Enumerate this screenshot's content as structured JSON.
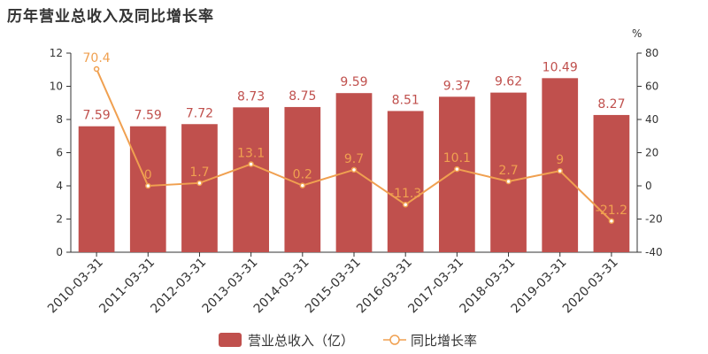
{
  "title": "历年营业总收入及同比增长率",
  "colors": {
    "bar": "#c0504d",
    "bar_label": "#c0504d",
    "line": "#f0a050",
    "line_label": "#f0a050",
    "axis": "#333333"
  },
  "chart_data": {
    "type": "bar",
    "categories": [
      "2010-03-31",
      "2011-03-31",
      "2012-03-31",
      "2013-03-31",
      "2014-03-31",
      "2015-03-31",
      "2016-03-31",
      "2017-03-31",
      "2018-03-31",
      "2019-03-31",
      "2020-03-31"
    ],
    "series": [
      {
        "name": "营业总收入（亿）",
        "type": "bar",
        "axis": "left",
        "values": [
          7.59,
          7.59,
          7.72,
          8.73,
          8.75,
          9.59,
          8.51,
          9.37,
          9.62,
          10.49,
          8.27
        ],
        "labels": [
          "7.59",
          "7.59",
          "7.72",
          "8.73",
          "8.75",
          "9.59",
          "8.51",
          "9.37",
          "9.62",
          "10.49",
          "8.27"
        ]
      },
      {
        "name": "同比增长率",
        "type": "line",
        "axis": "right",
        "values": [
          70.4,
          0,
          1.7,
          13.1,
          0.2,
          9.7,
          -11.3,
          10.1,
          2.7,
          9,
          -21.2
        ],
        "labels": [
          "70.4",
          "0",
          "1.7",
          "13.1",
          "0.2",
          "9.7",
          "-11.3",
          "10.1",
          "2.7",
          "9",
          "-21.2"
        ]
      }
    ],
    "y_left": {
      "min": 0,
      "max": 12,
      "ticks": [
        "0",
        "2",
        "4",
        "6",
        "8",
        "10",
        "12"
      ]
    },
    "y_right": {
      "min": -40,
      "max": 80,
      "unit": "%",
      "ticks": [
        "-40",
        "-20",
        "0",
        "20",
        "40",
        "60",
        "80"
      ]
    },
    "legend_position": "bottom-center",
    "grid": false
  }
}
